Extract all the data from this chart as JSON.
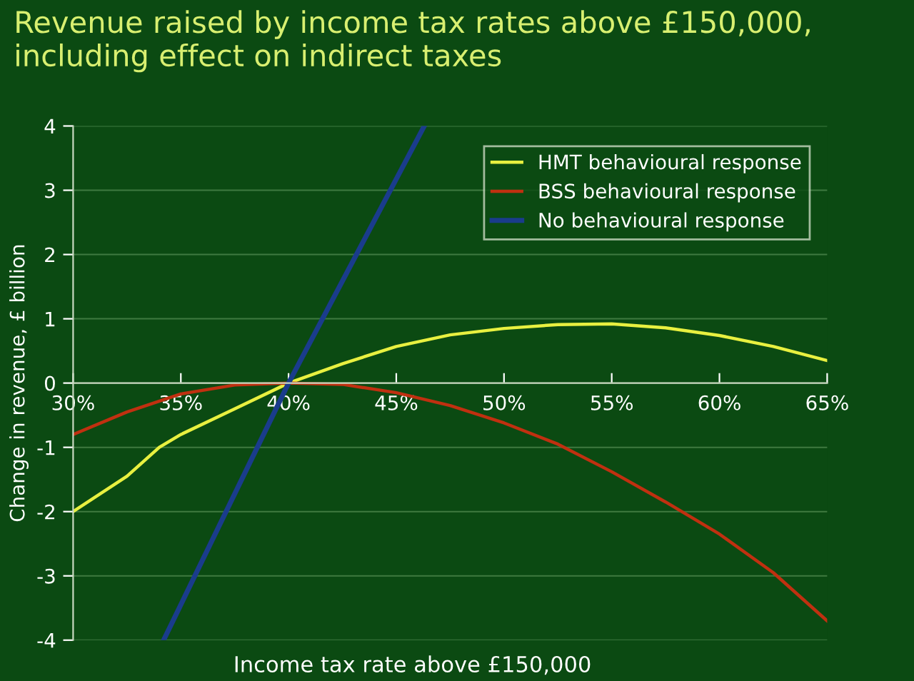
{
  "chart_data": {
    "type": "line",
    "title": "Revenue raised by income tax rates above £150,000,\nincluding effect on indirect taxes",
    "xlabel": "Income tax rate above £150,000",
    "ylabel": "Change in revenue, £ billion",
    "xlim": [
      30,
      65
    ],
    "xticks": [
      {
        "value": 30,
        "label": "30%"
      },
      {
        "value": 35,
        "label": "35%"
      },
      {
        "value": 40,
        "label": "40%"
      },
      {
        "value": 45,
        "label": "45%"
      },
      {
        "value": 50,
        "label": "50%"
      },
      {
        "value": 55,
        "label": "55%"
      },
      {
        "value": 60,
        "label": "60%"
      },
      {
        "value": 65,
        "label": "65%"
      }
    ],
    "ylim": [
      -4,
      4
    ],
    "yticks": [
      -4,
      -3,
      -2,
      -1,
      0,
      1,
      2,
      3,
      4
    ],
    "grid": "y",
    "legend": "top right",
    "marker": "none",
    "line_style": "solid",
    "series": [
      {
        "name": "HMT behavioural response",
        "color": "#e8f040",
        "x": [
          30,
          32.5,
          34,
          35,
          37.5,
          40,
          42.5,
          45,
          47.5,
          50,
          52.5,
          55,
          57.5,
          60,
          62.5,
          65
        ],
        "values": [
          -2,
          -1.45,
          -1.0,
          -0.8,
          -0.4,
          0,
          0.3,
          0.57,
          0.75,
          0.85,
          0.91,
          0.92,
          0.86,
          0.74,
          0.57,
          0.35
        ]
      },
      {
        "name": "BSS behavioural response",
        "color": "#c03010",
        "x": [
          30,
          32.5,
          35,
          37.5,
          40,
          42.5,
          45,
          47.5,
          50,
          52.5,
          55,
          57.5,
          60,
          62.5,
          65
        ],
        "values": [
          -0.8,
          -0.45,
          -0.17,
          -0.03,
          0,
          -0.02,
          -0.15,
          -0.35,
          -0.62,
          -0.95,
          -1.38,
          -1.85,
          -2.35,
          -2.95,
          -3.7
        ]
      },
      {
        "name": "No behavioural response",
        "color": "#1a3c8c",
        "x": [
          34.2,
          40,
          46.3
        ],
        "values": [
          -4,
          0,
          4
        ]
      }
    ]
  }
}
